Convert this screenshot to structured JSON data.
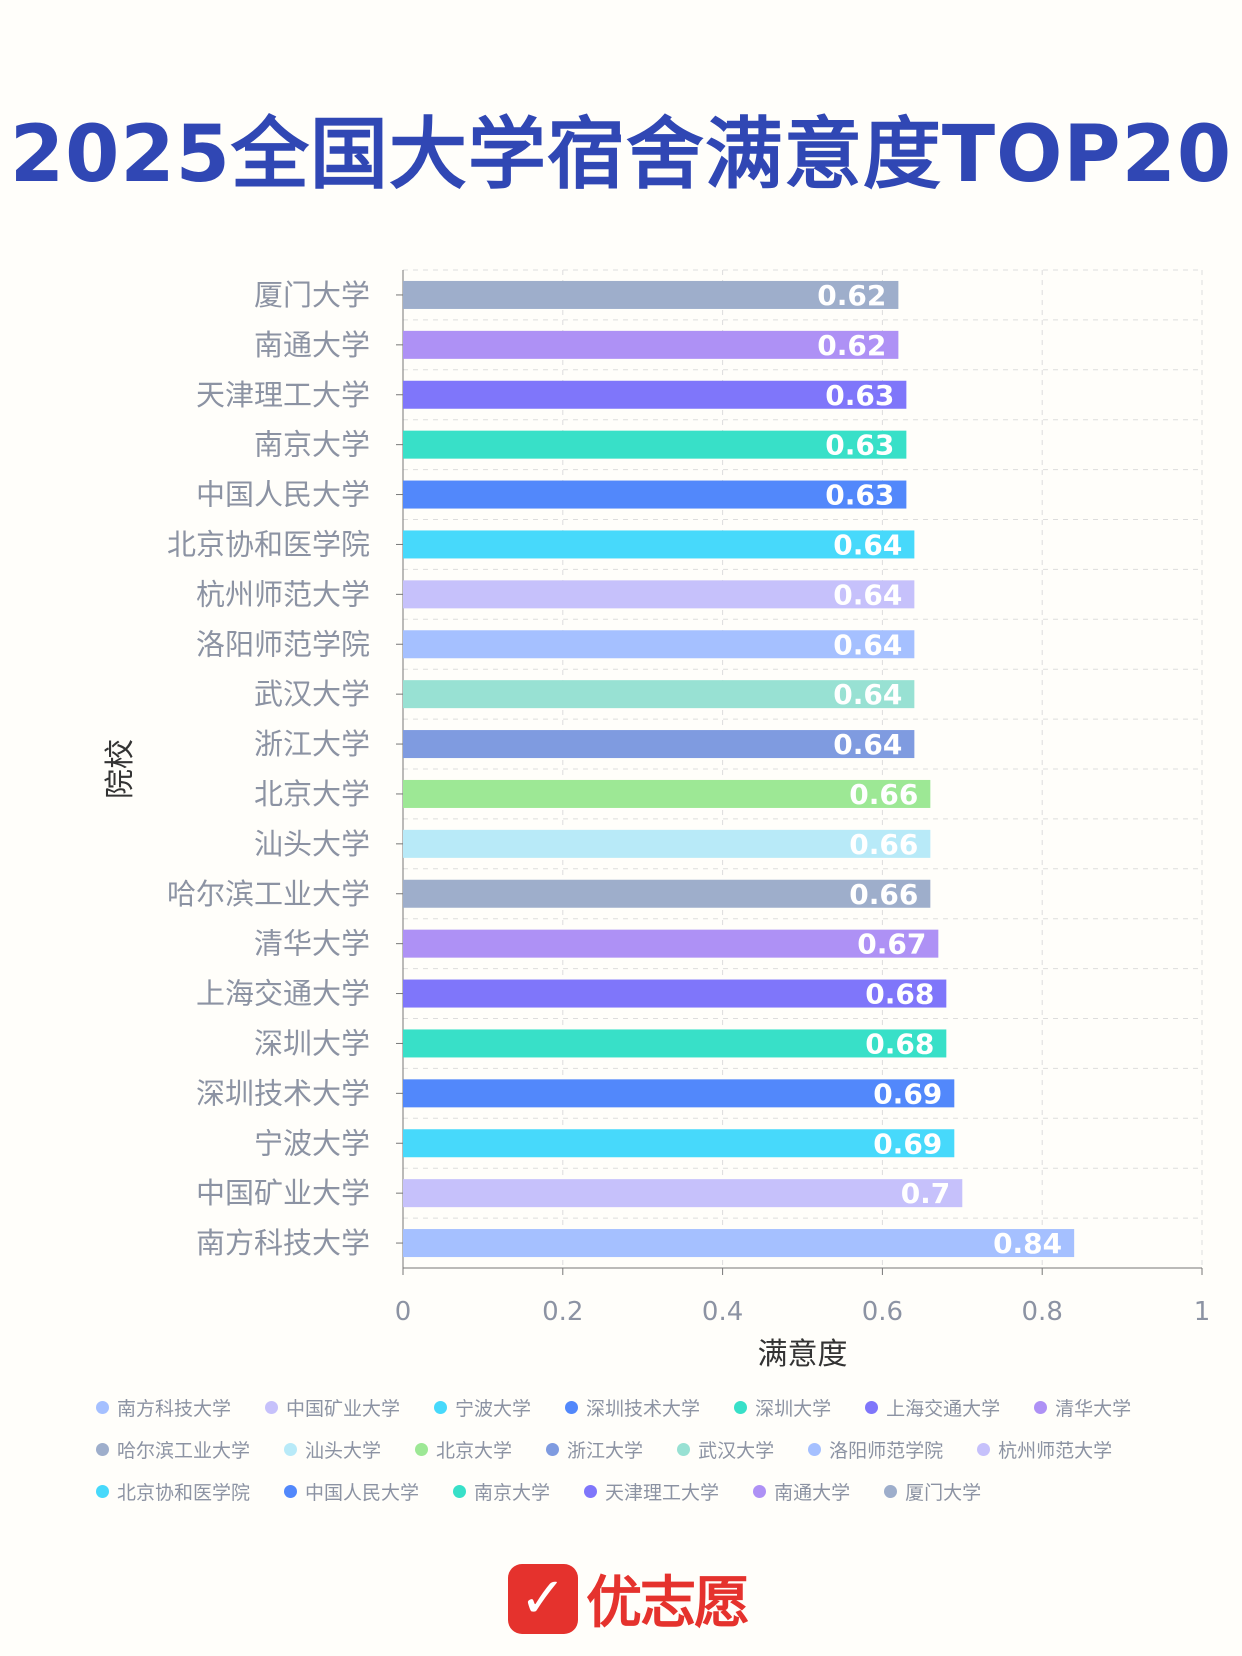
{
  "title": "2025全国大学宿舍满意度TOP20",
  "chart_data": {
    "type": "bar",
    "orientation": "horizontal",
    "title": "2025全国大学宿舍满意度TOP20",
    "xlabel": "满意度",
    "ylabel": "院校",
    "xlim": [
      0,
      1
    ],
    "xticks": [
      "0",
      "0.2",
      "0.4",
      "0.6",
      "0.8",
      "1"
    ],
    "grid": true,
    "legend_position": "bottom",
    "categories": [
      "厦门大学",
      "南通大学",
      "天津理工大学",
      "南京大学",
      "中国人民大学",
      "北京协和医学院",
      "杭州师范大学",
      "洛阳师范学院",
      "武汉大学",
      "浙江大学",
      "北京大学",
      "汕头大学",
      "哈尔滨工业大学",
      "清华大学",
      "上海交通大学",
      "深圳大学",
      "深圳技术大学",
      "宁波大学",
      "中国矿业大学",
      "南方科技大学"
    ],
    "values": [
      0.62,
      0.62,
      0.63,
      0.63,
      0.63,
      0.64,
      0.64,
      0.64,
      0.64,
      0.64,
      0.66,
      0.66,
      0.66,
      0.67,
      0.68,
      0.68,
      0.69,
      0.69,
      0.7,
      0.84
    ],
    "labels": [
      "0.62",
      "0.62",
      "0.63",
      "0.63",
      "0.63",
      "0.64",
      "0.64",
      "0.64",
      "0.64",
      "0.64",
      "0.66",
      "0.66",
      "0.66",
      "0.67",
      "0.68",
      "0.68",
      "0.69",
      "0.69",
      "0.7",
      "0.84"
    ],
    "colors": [
      "#9eaecb",
      "#ae91f5",
      "#7f76fa",
      "#38e0c8",
      "#5288fb",
      "#47d9fb",
      "#c6c1fb",
      "#a5c0ff",
      "#98e1d3",
      "#7f9be0",
      "#9de895",
      "#b8eaf8",
      "#9eaecb",
      "#ae91f5",
      "#7f76fa",
      "#38e0c8",
      "#5288fb",
      "#47d9fb",
      "#c6c1fb",
      "#a5c0ff"
    ]
  },
  "legend": [
    "南方科技大学",
    "中国矿业大学",
    "宁波大学",
    "深圳技术大学",
    "深圳大学",
    "上海交通大学",
    "清华大学",
    "哈尔滨工业大学",
    "汕头大学",
    "北京大学",
    "浙江大学",
    "武汉大学",
    "洛阳师范学院",
    "杭州师范大学",
    "北京协和医学院",
    "中国人民大学",
    "南京大学",
    "天津理工大学",
    "南通大学",
    "厦门大学"
  ],
  "logo": {
    "text": "优志愿",
    "mark": "✓"
  }
}
